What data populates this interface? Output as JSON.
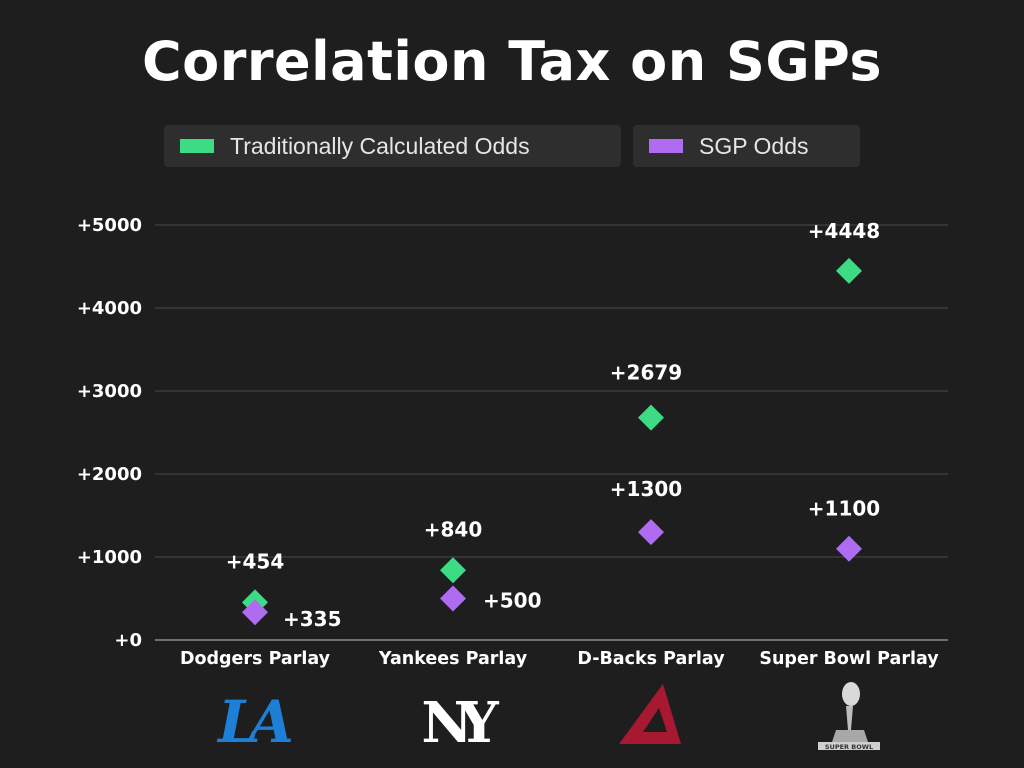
{
  "chart_data": {
    "type": "scatter",
    "title": "Correlation Tax on SGPs",
    "categories": [
      "Dodgers Parlay",
      "Yankees Parlay",
      "D-Backs Parlay",
      "Super Bowl Parlay"
    ],
    "ylim": [
      0,
      5000
    ],
    "yticks": [
      0,
      1000,
      2000,
      3000,
      4000,
      5000
    ],
    "ytick_labels": [
      "+0",
      "+1000",
      "+2000",
      "+3000",
      "+4000",
      "+5000"
    ],
    "grid": true,
    "legend_position": "top",
    "series": [
      {
        "name": "Traditionally Calculated Odds",
        "color": "#3ddc84",
        "values": [
          454,
          840,
          2679,
          4448
        ],
        "labels": [
          "+454",
          "+840",
          "+2679",
          "+4448"
        ]
      },
      {
        "name": "SGP Odds",
        "color": "#b06cf0",
        "values": [
          335,
          500,
          1300,
          1100
        ],
        "labels": [
          "+335",
          "+500",
          "+1300",
          "+1100"
        ]
      }
    ]
  },
  "logos": [
    {
      "name": "dodgers-logo",
      "text": "LA",
      "color": "#1e7fd6"
    },
    {
      "name": "yankees-logo",
      "text": "NY",
      "color": "#ffffff"
    },
    {
      "name": "dbacks-logo",
      "text": "A",
      "color": "#a71930"
    },
    {
      "name": "super-bowl-trophy-logo",
      "text": "SUPER BOWL",
      "color": "#c9c9c9"
    }
  ]
}
